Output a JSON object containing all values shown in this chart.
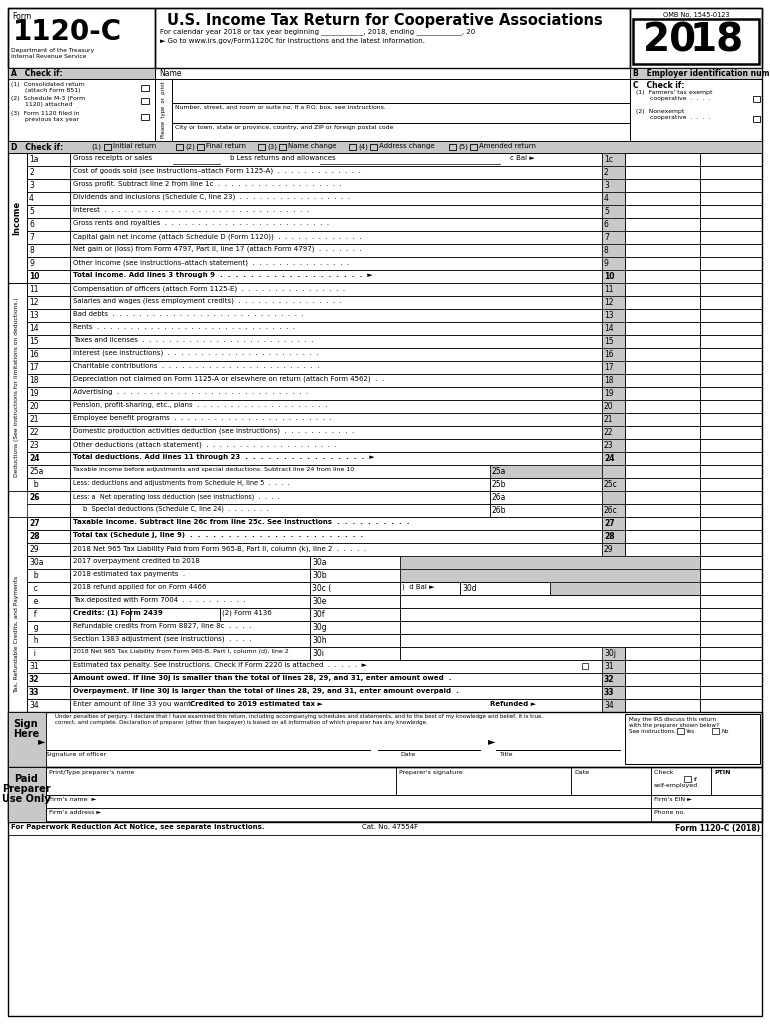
{
  "title": "U.S. Income Tax Return for Cooperative Associations",
  "form_number": "1120-C",
  "year": "2018",
  "omb": "OMB No. 1545-0123",
  "subtitle1": "For calendar year 2018 or tax year beginning ____________, 2018, ending _____________, 20",
  "subtitle2": "► Go to www.irs.gov/Form1120C for instructions and the latest information.",
  "dept": "Department of the Treasury",
  "irs": "Internal Revenue Service",
  "bg_color": "#ffffff",
  "light_gray": "#c8c8c8",
  "dark_gray": "#888888"
}
